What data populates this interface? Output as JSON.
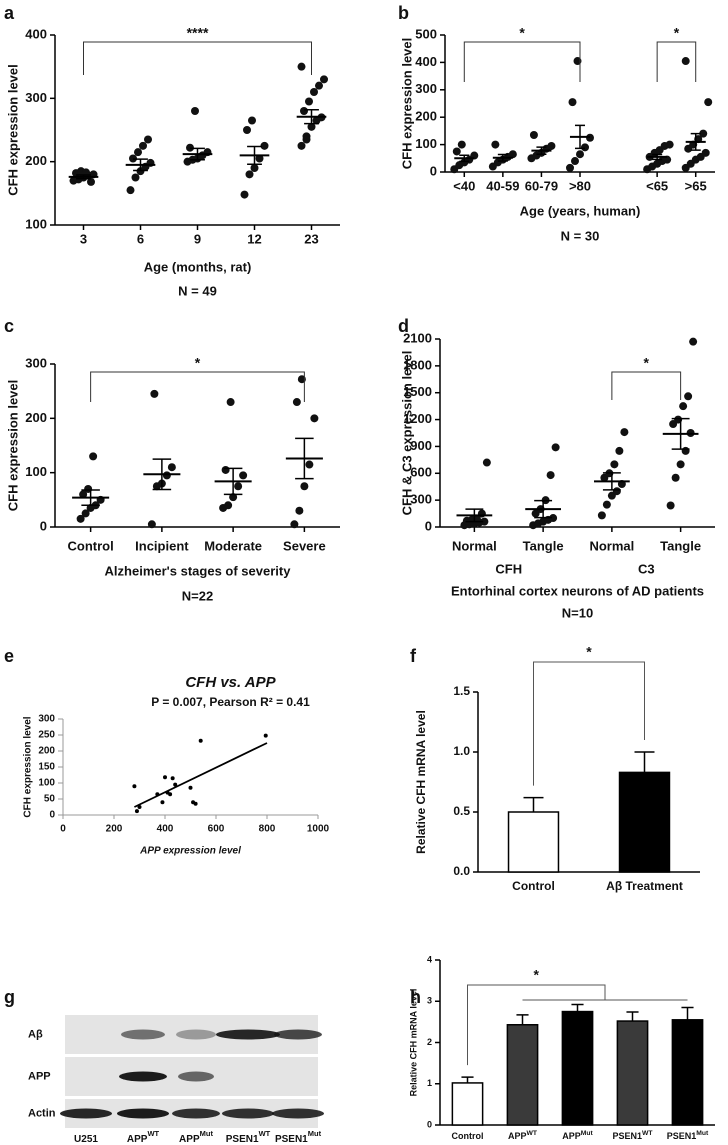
{
  "chart_data": [
    {
      "panel": "a",
      "type": "dot",
      "categories": [
        "3",
        "6",
        "9",
        "12",
        "23"
      ],
      "points": [
        [
          170,
          172,
          175,
          178,
          180,
          182,
          185,
          183,
          168
        ],
        [
          155,
          175,
          185,
          192,
          198,
          205,
          215,
          225,
          235
        ],
        [
          200,
          203,
          205,
          210,
          215,
          222,
          280
        ],
        [
          148,
          180,
          190,
          205,
          225,
          250,
          265
        ],
        [
          225,
          240,
          255,
          265,
          270,
          280,
          295,
          310,
          320,
          330,
          350,
          235
        ]
      ],
      "means": [
        176,
        195,
        212,
        210,
        271
      ],
      "errors": [
        3,
        9,
        9,
        14,
        11
      ],
      "ylim": [
        100,
        400
      ],
      "yticks": [
        100,
        200,
        300,
        400
      ],
      "xlabel": "Age (months, rat)",
      "ylabel": "CFH expression level",
      "note": "N = 49",
      "significance": [
        {
          "from": 0,
          "to": 4,
          "label": "****"
        }
      ]
    },
    {
      "panel": "b",
      "type": "dot",
      "categories": [
        "<40",
        "40-59",
        "60-79",
        ">80",
        null,
        "<65",
        ">65"
      ],
      "points": [
        [
          10,
          25,
          35,
          45,
          60,
          75,
          100
        ],
        [
          20,
          35,
          45,
          55,
          65,
          100
        ],
        [
          50,
          60,
          70,
          85,
          95,
          135
        ],
        [
          15,
          40,
          65,
          90,
          125,
          255,
          405
        ],
        [],
        [
          10,
          20,
          30,
          40,
          45,
          55,
          70,
          80,
          95,
          100
        ],
        [
          15,
          30,
          45,
          55,
          70,
          85,
          100,
          120,
          140,
          255,
          405
        ]
      ],
      "means": [
        50,
        52,
        78,
        128,
        null,
        55,
        110
      ],
      "errors": [
        11,
        12,
        13,
        42,
        null,
        9,
        30
      ],
      "ylim": [
        0,
        500
      ],
      "yticks": [
        0,
        100,
        200,
        300,
        400,
        500
      ],
      "xlabel": "Age (years, human)",
      "ylabel": "CFH expression level",
      "note": "N = 30",
      "significance": [
        {
          "from": 0,
          "to": 3,
          "label": "*"
        },
        {
          "from": 5,
          "to": 6,
          "label": "*"
        }
      ]
    },
    {
      "panel": "c",
      "type": "dot",
      "categories": [
        "Control",
        "Incipient",
        "Moderate",
        "Severe"
      ],
      "points": [
        [
          15,
          25,
          35,
          40,
          50,
          60,
          70,
          130
        ],
        [
          5,
          75,
          80,
          95,
          110,
          245
        ],
        [
          35,
          40,
          55,
          75,
          95,
          105,
          230
        ],
        [
          5,
          30,
          75,
          115,
          200,
          230,
          272
        ]
      ],
      "means": [
        54,
        97,
        84,
        126
      ],
      "errors": [
        14,
        28,
        24,
        37
      ],
      "ylim": [
        0,
        300
      ],
      "yticks": [
        0,
        100,
        200,
        300
      ],
      "xlabel": "Alzheimer's stages of severity",
      "ylabel": "CFH expression level",
      "note": "N=22",
      "significance": [
        {
          "from": 0,
          "to": 3,
          "label": "*"
        }
      ]
    },
    {
      "panel": "d",
      "type": "dot",
      "categories": [
        "Normal",
        "Tangle",
        "Normal",
        "Tangle"
      ],
      "points": [
        [
          20,
          30,
          40,
          50,
          60,
          70,
          80,
          90,
          150,
          720
        ],
        [
          20,
          40,
          60,
          80,
          100,
          150,
          200,
          300,
          580,
          890
        ],
        [
          130,
          250,
          350,
          400,
          480,
          550,
          600,
          700,
          850,
          1060
        ],
        [
          240,
          550,
          700,
          850,
          1050,
          1150,
          1200,
          1350,
          1460,
          2070
        ]
      ],
      "means": [
        130,
        200,
        510,
        1040
      ],
      "errors": [
        70,
        95,
        95,
        170
      ],
      "ylim": [
        0,
        2100
      ],
      "yticks": [
        0,
        300,
        600,
        900,
        1200,
        1500,
        1800,
        2100
      ],
      "groups": [
        {
          "label": "CFH",
          "from": 0,
          "to": 1
        },
        {
          "label": "C3",
          "from": 2,
          "to": 3
        }
      ],
      "xlabel": "Entorhinal cortex neurons of AD patients",
      "ylabel": "CFH & C3 expression level",
      "note": "N=10",
      "significance": [
        {
          "from": 2,
          "to": 3,
          "label": "*"
        }
      ]
    },
    {
      "panel": "e",
      "type": "scatter",
      "title": "CFH vs. APP",
      "subtitle": "P = 0.007, Pearson R² = 0.41",
      "x": [
        280,
        290,
        300,
        370,
        390,
        400,
        410,
        420,
        430,
        440,
        500,
        510,
        520,
        540,
        795
      ],
      "y": [
        90,
        12,
        25,
        65,
        40,
        118,
        70,
        65,
        115,
        95,
        85,
        40,
        35,
        232,
        248
      ],
      "fit": {
        "x": [
          280,
          800
        ],
        "y": [
          25,
          225
        ]
      },
      "xlim": [
        0,
        1000
      ],
      "xticks": [
        0,
        200,
        400,
        600,
        800,
        1000
      ],
      "ylim": [
        0,
        300
      ],
      "yticks": [
        0,
        50,
        100,
        150,
        200,
        250,
        300
      ],
      "xlabel": "APP expression level",
      "ylabel": "CFH expression level"
    },
    {
      "panel": "f",
      "type": "bar",
      "categories": [
        "Control",
        "Aβ Treatment"
      ],
      "values": [
        0.5,
        0.83
      ],
      "errors": [
        0.12,
        0.17
      ],
      "colors": [
        "#ffffff",
        "#000000"
      ],
      "ylim": [
        0,
        1.5
      ],
      "yticks": [
        {
          "value": 0,
          "label": "0.0"
        },
        {
          "value": 0.5,
          "label": "0.5"
        },
        {
          "value": 1,
          "label": "1.0"
        },
        {
          "value": 1.5,
          "label": "1.5"
        }
      ],
      "ylabel": "Relative CFH mRNA level",
      "significance": [
        {
          "from": 0,
          "to": 1,
          "label": "*"
        }
      ]
    },
    {
      "panel": "g",
      "type": "blot",
      "rows": [
        "Aβ",
        "APP",
        "Actin"
      ],
      "lanes": [
        {
          "base": "U251"
        },
        {
          "base": "APP",
          "sup": "WT"
        },
        {
          "base": "APP",
          "sup": "Mut"
        },
        {
          "base": "PSEN1",
          "sup": "WT"
        },
        {
          "base": "PSEN1",
          "sup": "Mut"
        }
      ]
    },
    {
      "panel": "h",
      "type": "bar",
      "categories": [
        {
          "base": "Control"
        },
        {
          "base": "APP",
          "sup": "WT"
        },
        {
          "base": "APP",
          "sup": "Mut"
        },
        {
          "base": "PSEN1",
          "sup": "WT"
        },
        {
          "base": "PSEN1",
          "sup": "Mut"
        }
      ],
      "values": [
        1.02,
        2.43,
        2.75,
        2.52,
        2.55
      ],
      "errors": [
        0.14,
        0.24,
        0.17,
        0.22,
        0.3
      ],
      "colors": [
        "#ffffff",
        "#3a3a3a",
        "#000000",
        "#3a3a3a",
        "#000000"
      ],
      "ylim": [
        0,
        4
      ],
      "yticks": [
        0,
        1,
        2,
        3,
        4
      ],
      "ylabel": "Relative CFH mRNA level",
      "significance": [
        {
          "from": 0,
          "to": [
            1,
            4
          ],
          "label": "*"
        }
      ]
    }
  ]
}
